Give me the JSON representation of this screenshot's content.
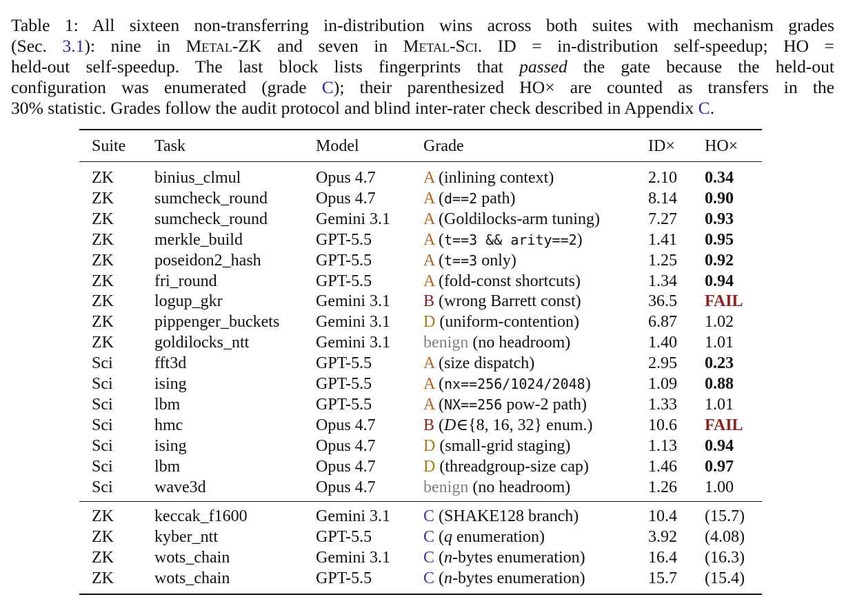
{
  "caption": {
    "lines": [
      [
        {
          "t": "Table 1: All sixteen non-transferring in-distribution wins across both suites with mechanism grades"
        }
      ],
      [
        {
          "t": "(Sec. "
        },
        {
          "t": "3.1",
          "s": "ref"
        },
        {
          "t": "): nine in "
        },
        {
          "t": "Metal-ZK",
          "s": "sc"
        },
        {
          "t": " and seven in "
        },
        {
          "t": "Metal-Sci",
          "s": "sc"
        },
        {
          "t": ". ID = in-distribution self-speedup; HO ="
        }
      ],
      [
        {
          "t": "held-out self-speedup. The last block lists fingerprints that "
        },
        {
          "t": "passed",
          "s": "em"
        },
        {
          "t": " the gate because the held-out"
        }
      ],
      [
        {
          "t": "configuration was enumerated (grade "
        },
        {
          "t": "C",
          "s": "ref"
        },
        {
          "t": "); their parenthesized HO× are counted as transfers in the"
        }
      ],
      [
        {
          "t": "30% statistic. Grades follow the audit protocol and blind inter-rater check described in Appendix "
        },
        {
          "t": "C",
          "s": "ref"
        },
        {
          "t": "."
        }
      ]
    ]
  },
  "table": {
    "headers": {
      "suite": "Suite",
      "task": "Task",
      "model": "Model",
      "grade": "Grade",
      "id": "ID×",
      "ho": "HO×"
    },
    "rows": [
      {
        "suite": "ZK",
        "task": "binius_clmul",
        "model": "Opus 4.7",
        "grade": "A",
        "note": [
          {
            "t": "(inlining context)"
          }
        ],
        "id": "2.10",
        "ho": "0.34",
        "ho_style": "bold"
      },
      {
        "suite": "ZK",
        "task": "sumcheck_round",
        "model": "Opus 4.7",
        "grade": "A",
        "note": [
          {
            "t": "("
          },
          {
            "t": "d==2",
            "s": "mono"
          },
          {
            "t": " path)"
          }
        ],
        "id": "8.14",
        "ho": "0.90",
        "ho_style": "bold"
      },
      {
        "suite": "ZK",
        "task": "sumcheck_round",
        "model": "Gemini 3.1",
        "grade": "A",
        "note": [
          {
            "t": "(Goldilocks-arm tuning)"
          }
        ],
        "id": "7.27",
        "ho": "0.93",
        "ho_style": "bold"
      },
      {
        "suite": "ZK",
        "task": "merkle_build",
        "model": "GPT-5.5",
        "grade": "A",
        "note": [
          {
            "t": "("
          },
          {
            "t": "t==3 && arity==2",
            "s": "mono"
          },
          {
            "t": ")"
          }
        ],
        "id": "1.41",
        "ho": "0.95",
        "ho_style": "bold"
      },
      {
        "suite": "ZK",
        "task": "poseidon2_hash",
        "model": "GPT-5.5",
        "grade": "A",
        "note": [
          {
            "t": "("
          },
          {
            "t": "t==3",
            "s": "mono"
          },
          {
            "t": " only)"
          }
        ],
        "id": "1.25",
        "ho": "0.92",
        "ho_style": "bold"
      },
      {
        "suite": "ZK",
        "task": "fri_round",
        "model": "GPT-5.5",
        "grade": "A",
        "note": [
          {
            "t": "(fold-const shortcuts)"
          }
        ],
        "id": "1.34",
        "ho": "0.94",
        "ho_style": "bold"
      },
      {
        "suite": "ZK",
        "task": "logup_gkr",
        "model": "Gemini 3.1",
        "grade": "B",
        "note": [
          {
            "t": "(wrong Barrett const)"
          }
        ],
        "id": "36.5",
        "ho": "FAIL",
        "ho_style": "fail"
      },
      {
        "suite": "ZK",
        "task": "pippenger_buckets",
        "model": "Gemini 3.1",
        "grade": "D",
        "note": [
          {
            "t": "(uniform-contention)"
          }
        ],
        "id": "6.87",
        "ho": "1.02",
        "ho_style": ""
      },
      {
        "suite": "ZK",
        "task": "goldilocks_ntt",
        "model": "Gemini 3.1",
        "grade": "benign",
        "note": [
          {
            "t": "(no headroom)"
          }
        ],
        "id": "1.40",
        "ho": "1.01",
        "ho_style": ""
      },
      {
        "suite": "Sci",
        "task": "fft3d",
        "model": "GPT-5.5",
        "grade": "A",
        "note": [
          {
            "t": "(size dispatch)"
          }
        ],
        "id": "2.95",
        "ho": "0.23",
        "ho_style": "bold"
      },
      {
        "suite": "Sci",
        "task": "ising",
        "model": "GPT-5.5",
        "grade": "A",
        "note": [
          {
            "t": "("
          },
          {
            "t": "nx==256/1024/2048",
            "s": "mono"
          },
          {
            "t": ")"
          }
        ],
        "id": "1.09",
        "ho": "0.88",
        "ho_style": "bold"
      },
      {
        "suite": "Sci",
        "task": "lbm",
        "model": "GPT-5.5",
        "grade": "A",
        "note": [
          {
            "t": "("
          },
          {
            "t": "NX==256",
            "s": "mono"
          },
          {
            "t": " pow-2 path)"
          }
        ],
        "id": "1.33",
        "ho": "1.01",
        "ho_style": ""
      },
      {
        "suite": "Sci",
        "task": "hmc",
        "model": "Opus 4.7",
        "grade": "B",
        "note": [
          {
            "t": "("
          },
          {
            "t": "D",
            "s": "em"
          },
          {
            "t": "∈{8, 16, 32} enum.)"
          }
        ],
        "id": "10.6",
        "ho": "FAIL",
        "ho_style": "fail"
      },
      {
        "suite": "Sci",
        "task": "ising",
        "model": "Opus 4.7",
        "grade": "D",
        "note": [
          {
            "t": "(small-grid staging)"
          }
        ],
        "id": "1.13",
        "ho": "0.94",
        "ho_style": "bold"
      },
      {
        "suite": "Sci",
        "task": "lbm",
        "model": "Opus 4.7",
        "grade": "D",
        "note": [
          {
            "t": "(threadgroup-size cap)"
          }
        ],
        "id": "1.46",
        "ho": "0.97",
        "ho_style": "bold"
      },
      {
        "suite": "Sci",
        "task": "wave3d",
        "model": "Opus 4.7",
        "grade": "benign",
        "note": [
          {
            "t": "(no headroom)"
          }
        ],
        "id": "1.26",
        "ho": "1.00",
        "ho_style": ""
      }
    ],
    "passed_rows": [
      {
        "suite": "ZK",
        "task": "keccak_f1600",
        "model": "Gemini 3.1",
        "grade": "C",
        "note": [
          {
            "t": "(SHAKE128 branch)"
          }
        ],
        "id": "10.4",
        "ho": "(15.7)",
        "ho_style": ""
      },
      {
        "suite": "ZK",
        "task": "kyber_ntt",
        "model": "GPT-5.5",
        "grade": "C",
        "note": [
          {
            "t": "("
          },
          {
            "t": "q",
            "s": "em"
          },
          {
            "t": " enumeration)"
          }
        ],
        "id": "3.92",
        "ho": "(4.08)",
        "ho_style": ""
      },
      {
        "suite": "ZK",
        "task": "wots_chain",
        "model": "Gemini 3.1",
        "grade": "C",
        "note": [
          {
            "t": "("
          },
          {
            "t": "n",
            "s": "em"
          },
          {
            "t": "-bytes enumeration)"
          }
        ],
        "id": "16.4",
        "ho": "(16.3)",
        "ho_style": ""
      },
      {
        "suite": "ZK",
        "task": "wots_chain",
        "model": "GPT-5.5",
        "grade": "C",
        "note": [
          {
            "t": "("
          },
          {
            "t": "n",
            "s": "em"
          },
          {
            "t": "-bytes enumeration)"
          }
        ],
        "id": "15.7",
        "ho": "(15.4)",
        "ho_style": ""
      }
    ],
    "grade_colors": {
      "A": "#b5631d",
      "B": "#8c2323",
      "C": "#3a3aa8",
      "D": "#a77a12",
      "benign": "#808080"
    }
  }
}
